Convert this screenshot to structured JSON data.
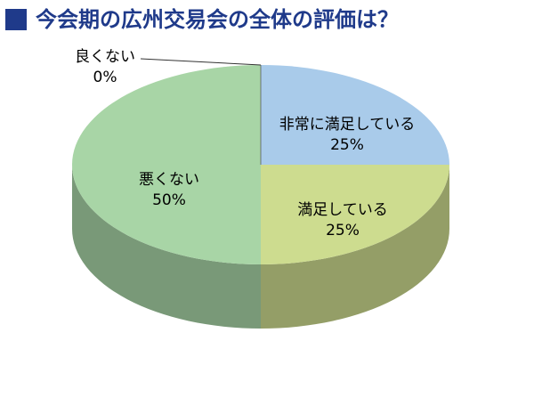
{
  "chart_data": {
    "type": "pie",
    "title": "今会期の広州交易会の全体の評価は？",
    "categories": [
      "非常に満足している",
      "満足している",
      "悪くない",
      "良くない"
    ],
    "values": [
      25,
      25,
      50,
      0
    ],
    "value_labels": [
      "25%",
      "25%",
      "50%",
      "0%"
    ],
    "colors": [
      "#a9cbea",
      "#cddc8f",
      "#a8d5a6",
      "#c0504d"
    ]
  }
}
